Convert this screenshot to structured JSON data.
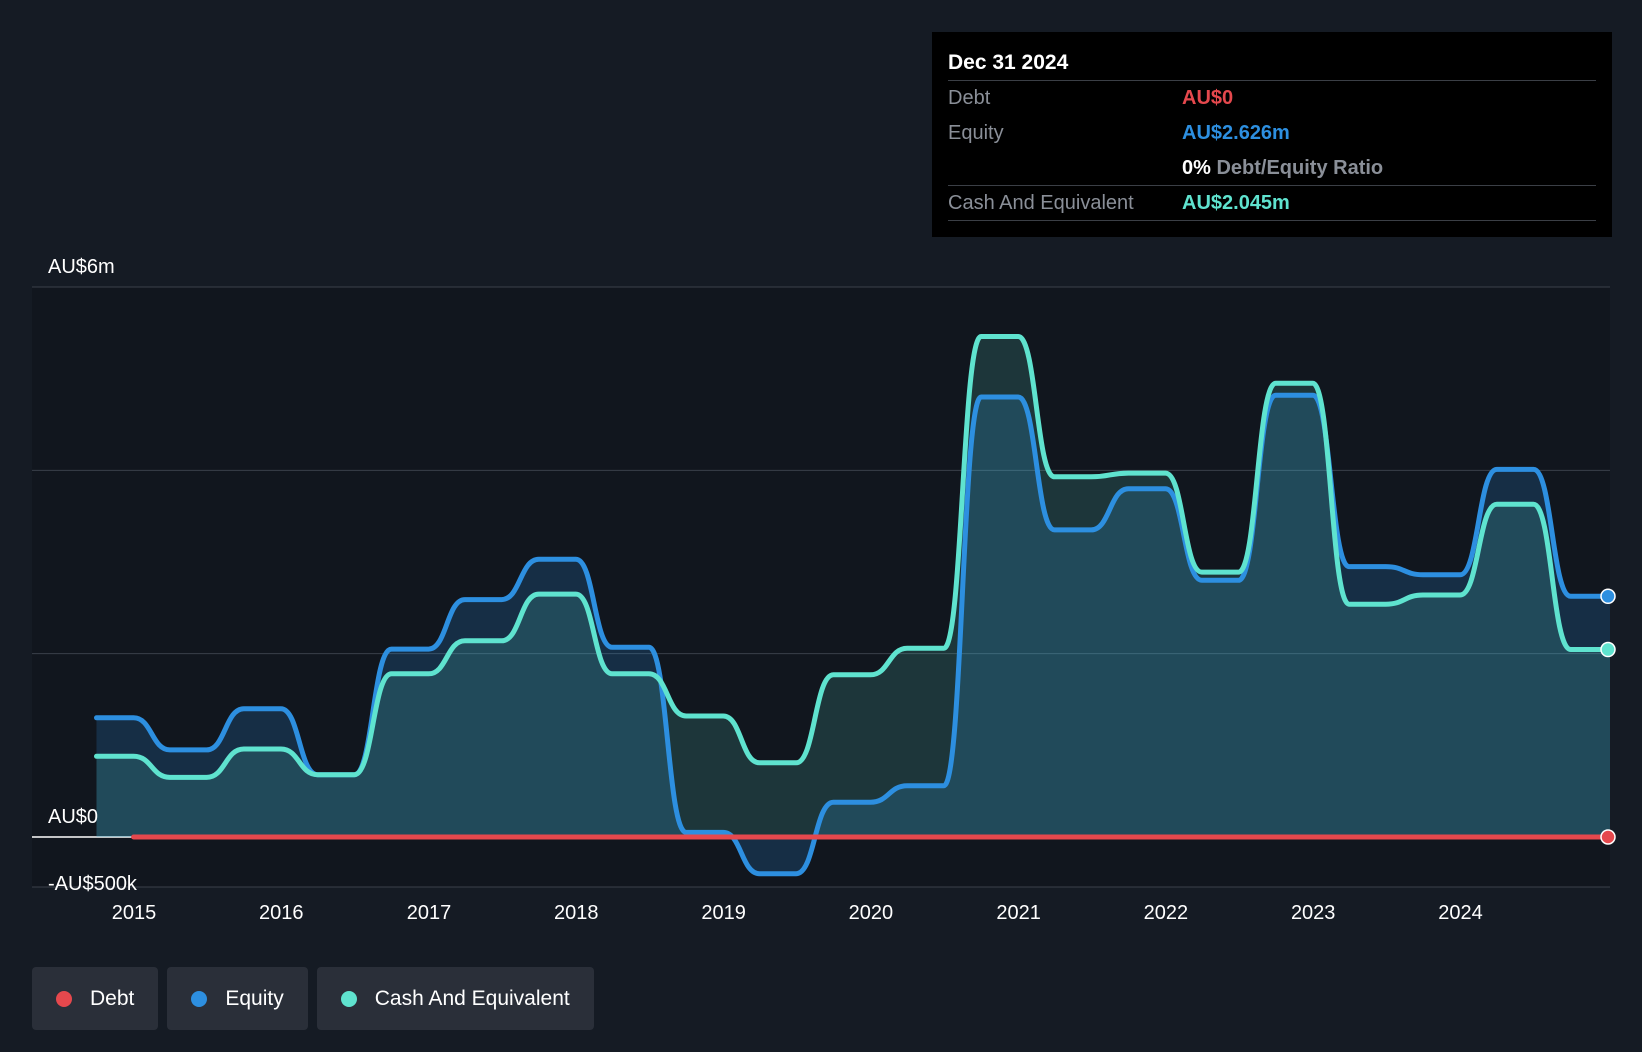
{
  "chart_data": {
    "type": "area",
    "y_axis_labels": [
      "AU$6m",
      "AU$0",
      "-AU$500k"
    ],
    "ylim": [
      -500000,
      6000000
    ],
    "x_ticks": [
      "2015",
      "2016",
      "2017",
      "2018",
      "2019",
      "2020",
      "2021",
      "2022",
      "2023",
      "2024"
    ],
    "grid": true,
    "x": [
      "2014-09-30",
      "2014-12-31",
      "2015-03-31",
      "2015-06-30",
      "2015-09-30",
      "2015-12-31",
      "2016-03-31",
      "2016-06-30",
      "2016-09-30",
      "2016-12-31",
      "2017-03-31",
      "2017-06-30",
      "2017-09-30",
      "2017-12-31",
      "2018-03-31",
      "2018-06-30",
      "2018-09-30",
      "2018-12-31",
      "2019-03-31",
      "2019-06-30",
      "2019-09-30",
      "2019-12-31",
      "2020-03-31",
      "2020-06-30",
      "2020-09-30",
      "2020-12-31",
      "2021-03-31",
      "2021-06-30",
      "2021-09-30",
      "2021-12-31",
      "2022-03-31",
      "2022-06-30",
      "2022-09-30",
      "2022-12-31",
      "2023-03-31",
      "2023-06-30",
      "2023-09-30",
      "2023-12-31",
      "2024-03-31",
      "2024-06-30",
      "2024-09-30",
      "2024-12-31"
    ],
    "series": [
      {
        "name": "Debt",
        "color": "#e5484d",
        "values": [
          0,
          0,
          0,
          0,
          0,
          0,
          0,
          0,
          0,
          0,
          0,
          0,
          0,
          0,
          0,
          0,
          0,
          0,
          0,
          0,
          0,
          0,
          0,
          0,
          0,
          0,
          0,
          0,
          0,
          0,
          0,
          0,
          0,
          0,
          0,
          0,
          0,
          0,
          0,
          0,
          0,
          0
        ]
      },
      {
        "name": "Equity",
        "color": "#2d8fe0",
        "values": [
          1300000,
          1300000,
          950000,
          950000,
          1400000,
          1400000,
          680000,
          680000,
          2050000,
          2050000,
          2590000,
          2590000,
          3030000,
          3030000,
          2070000,
          2070000,
          50000,
          50000,
          -400000,
          -400000,
          380000,
          380000,
          560000,
          560000,
          4800000,
          4800000,
          3350000,
          3350000,
          3800000,
          3800000,
          2800000,
          2800000,
          4820000,
          4820000,
          2950000,
          2950000,
          2860000,
          2860000,
          4010000,
          4010000,
          2626000,
          2626000
        ]
      },
      {
        "name": "Cash And Equivalent",
        "color": "#5fe3cf",
        "values": [
          880000,
          880000,
          650000,
          650000,
          960000,
          960000,
          680000,
          680000,
          1780000,
          1780000,
          2140000,
          2140000,
          2650000,
          2650000,
          1780000,
          1780000,
          1320000,
          1320000,
          810000,
          810000,
          1770000,
          1770000,
          2060000,
          2060000,
          5460000,
          5460000,
          3930000,
          3930000,
          3970000,
          3970000,
          2890000,
          2890000,
          4950000,
          4950000,
          2540000,
          2540000,
          2640000,
          2640000,
          3630000,
          3630000,
          2045000,
          2045000
        ]
      }
    ],
    "tooltip": {
      "date": "Dec 31 2024",
      "debt_label": "Debt",
      "debt_value": "AU$0",
      "equity_label": "Equity",
      "equity_value": "AU$2.626m",
      "ratio_value": "0%",
      "ratio_label": "Debt/Equity Ratio",
      "cash_label": "Cash And Equivalent",
      "cash_value": "AU$2.045m"
    },
    "legend": [
      {
        "label": "Debt",
        "color": "#e5484d"
      },
      {
        "label": "Equity",
        "color": "#2d8fe0"
      },
      {
        "label": "Cash And Equivalent",
        "color": "#5fe3cf"
      }
    ]
  }
}
